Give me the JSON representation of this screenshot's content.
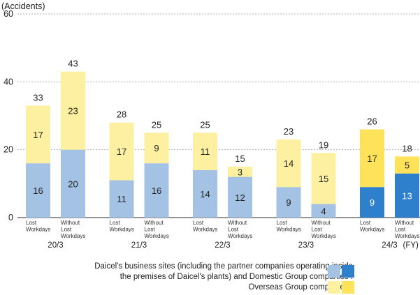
{
  "chart_data": {
    "type": "bar",
    "stacked": true,
    "y_unit_label": "(Accidents)",
    "ylim": [
      0,
      60
    ],
    "yticks": [
      0,
      20,
      40,
      60
    ],
    "grid": "dashed horizontal",
    "fiscal_year_suffix": "(FY)",
    "years": [
      {
        "label": "20/3",
        "bars": [
          {
            "sublabel": [
              "Lost",
              "Workdays"
            ],
            "bottom": 16,
            "top": 17,
            "total": 33
          },
          {
            "sublabel": [
              "Without",
              "Lost",
              "Workdays"
            ],
            "bottom": 20,
            "top": 23,
            "total": 43
          }
        ]
      },
      {
        "label": "21/3",
        "bars": [
          {
            "sublabel": [
              "Lost",
              "Workdays"
            ],
            "bottom": 11,
            "top": 17,
            "total": 28
          },
          {
            "sublabel": [
              "Without",
              "Lost",
              "Workdays"
            ],
            "bottom": 16,
            "top": 9,
            "total": 25
          }
        ]
      },
      {
        "label": "22/3",
        "bars": [
          {
            "sublabel": [
              "Lost",
              "Workdays"
            ],
            "bottom": 14,
            "top": 11,
            "total": 25
          },
          {
            "sublabel": [
              "Without",
              "Lost",
              "Workdays"
            ],
            "bottom": 12,
            "top": 3,
            "total": 15
          }
        ]
      },
      {
        "label": "23/3",
        "bars": [
          {
            "sublabel": [
              "Lost",
              "Workdays"
            ],
            "bottom": 9,
            "top": 14,
            "total": 23
          },
          {
            "sublabel": [
              "Without",
              "Lost",
              "Workdays"
            ],
            "bottom": 4,
            "top": 15,
            "total": 19
          }
        ]
      },
      {
        "label": "24/3",
        "bars": [
          {
            "sublabel": [
              "Lost",
              "Workdays"
            ],
            "bottom": 9,
            "top": 17,
            "total": 26
          },
          {
            "sublabel": [
              "Without",
              "Lost",
              "Workdays"
            ],
            "bottom": 13,
            "top": 5,
            "total": 18
          }
        ]
      }
    ],
    "colors": {
      "domestic_light": "#a3c2e4",
      "domestic_dark": "#2f80cc",
      "overseas_light": "#fdf0a0",
      "overseas_dark": "#fde25a",
      "grid": "#b0b0b0",
      "axis": "#555555"
    },
    "legend": {
      "domestic_line1": "Daicel's business sites (including the partner companies operating inside",
      "domestic_line2": "the premises of Daicel's plants) and Domestic Group companies :",
      "overseas": "Overseas Group companies :"
    }
  }
}
